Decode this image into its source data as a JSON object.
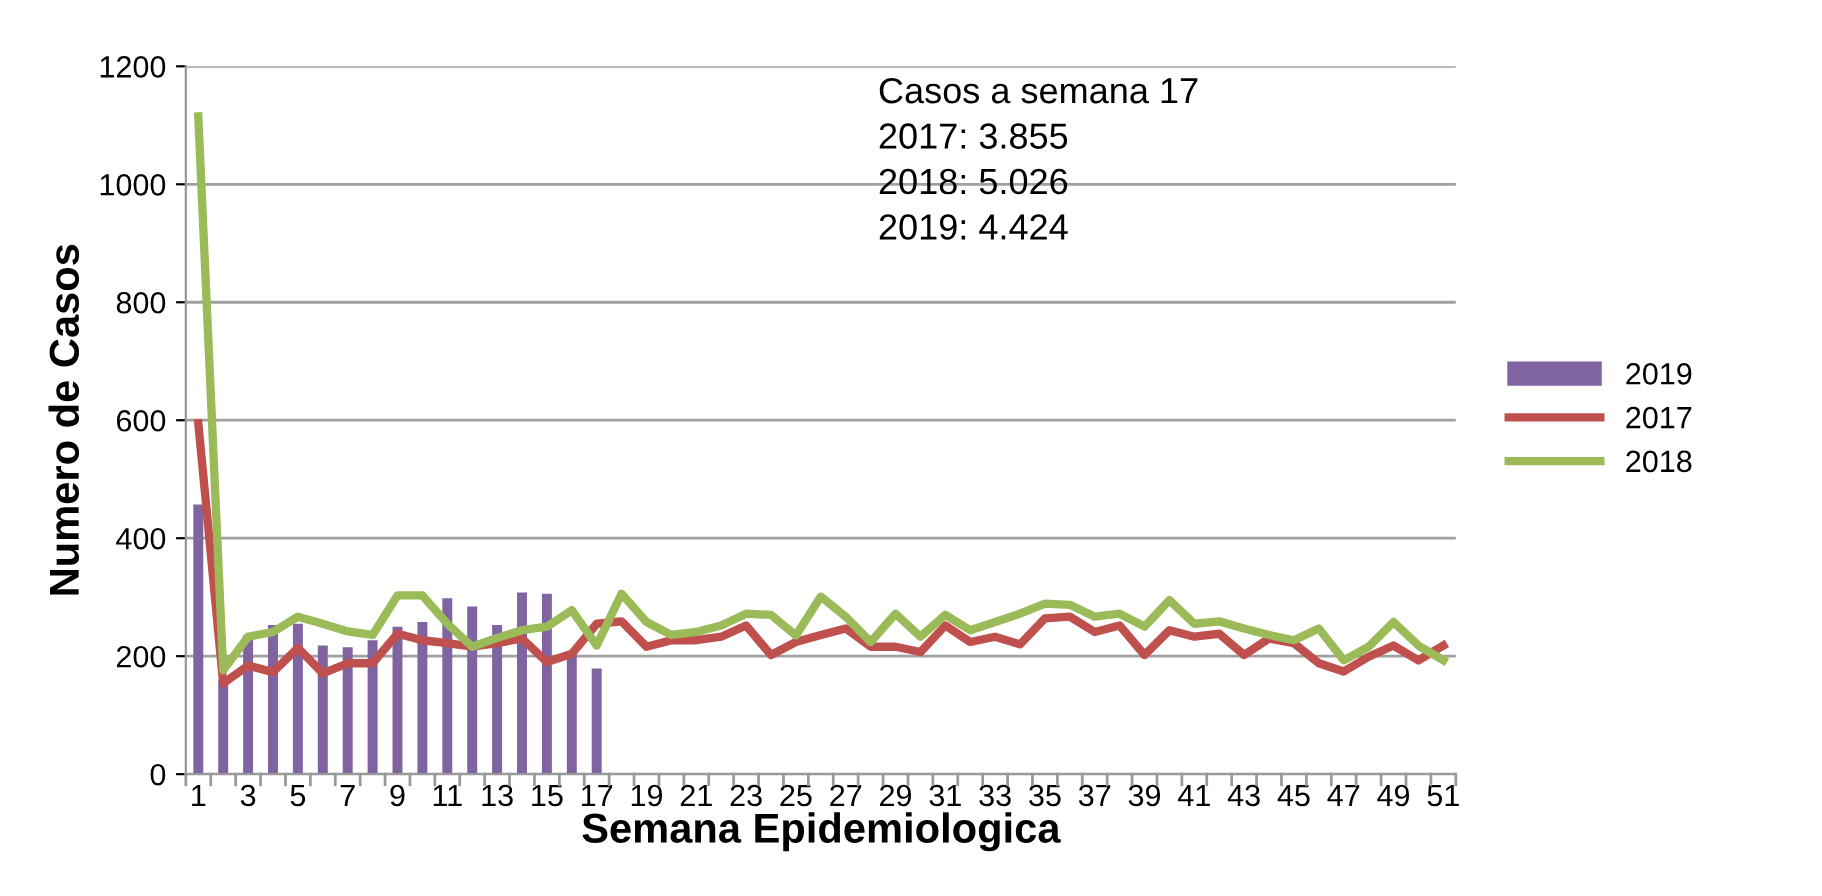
{
  "chart_data": {
    "type": "bar",
    "xlabel": "Semana Epidemiologica",
    "ylabel": "Numero de Casos",
    "categories": [
      "1",
      null,
      "3",
      null,
      "5",
      null,
      "7",
      null,
      "9",
      null,
      "11",
      null,
      "13",
      null,
      "15",
      null,
      "17",
      null,
      "19",
      null,
      "21",
      null,
      "23",
      null,
      "25",
      null,
      "27",
      null,
      "29",
      null,
      "31",
      null,
      "33",
      null,
      "35",
      null,
      "37",
      null,
      "39",
      null,
      "41",
      null,
      "43",
      null,
      "45",
      null,
      "47",
      null,
      "49",
      null,
      "51"
    ],
    "series": [
      {
        "name": "2019",
        "color": "#8064a2",
        "values": [
          457,
          160,
          236,
          253,
          255,
          218,
          215,
          227,
          250,
          258,
          298,
          284,
          253,
          308,
          306,
          204,
          179,
          null,
          null,
          null,
          null,
          null,
          null,
          null,
          null,
          null,
          null,
          null,
          null,
          null,
          null,
          null,
          null,
          null,
          null,
          null,
          null,
          null,
          null,
          null,
          null,
          null,
          null,
          null,
          null,
          null,
          null,
          null,
          null,
          null,
          null
        ]
      },
      {
        "name": "2017",
        "type": "line",
        "color": "#c0504d",
        "values": [
          595,
          154,
          184,
          173,
          214,
          171,
          188,
          188,
          238,
          227,
          222,
          216,
          222,
          230,
          190,
          204,
          255,
          259,
          216,
          227,
          227,
          233,
          252,
          202,
          224,
          236,
          247,
          216,
          216,
          207,
          252,
          224,
          233,
          220,
          264,
          267,
          241,
          252,
          202,
          244,
          233,
          238,
          202,
          230,
          222,
          188,
          174,
          199,
          218,
          193,
          218
        ]
      },
      {
        "name": "2018",
        "type": "line",
        "color": "#9bbb59",
        "values": [
          1115,
          176,
          233,
          241,
          267,
          255,
          242,
          236,
          303,
          303,
          255,
          216,
          231,
          244,
          250,
          278,
          218,
          306,
          258,
          236,
          241,
          252,
          272,
          270,
          235,
          301,
          267,
          224,
          272,
          233,
          270,
          244,
          258,
          272,
          289,
          287,
          267,
          272,
          250,
          295,
          255,
          259,
          247,
          236,
          227,
          247,
          193,
          216,
          258,
          218,
          193
        ]
      }
    ],
    "ylim": [
      0,
      1200
    ],
    "yticks": [
      0,
      200,
      400,
      600,
      800,
      1000,
      1200
    ],
    "grid": "y",
    "legend": "right",
    "line_style": "solid",
    "marker": "none",
    "annotations": [
      "Casos a semana 17\n2017: 3.855\n2018: 5.026\n2019: 4.424"
    ]
  }
}
